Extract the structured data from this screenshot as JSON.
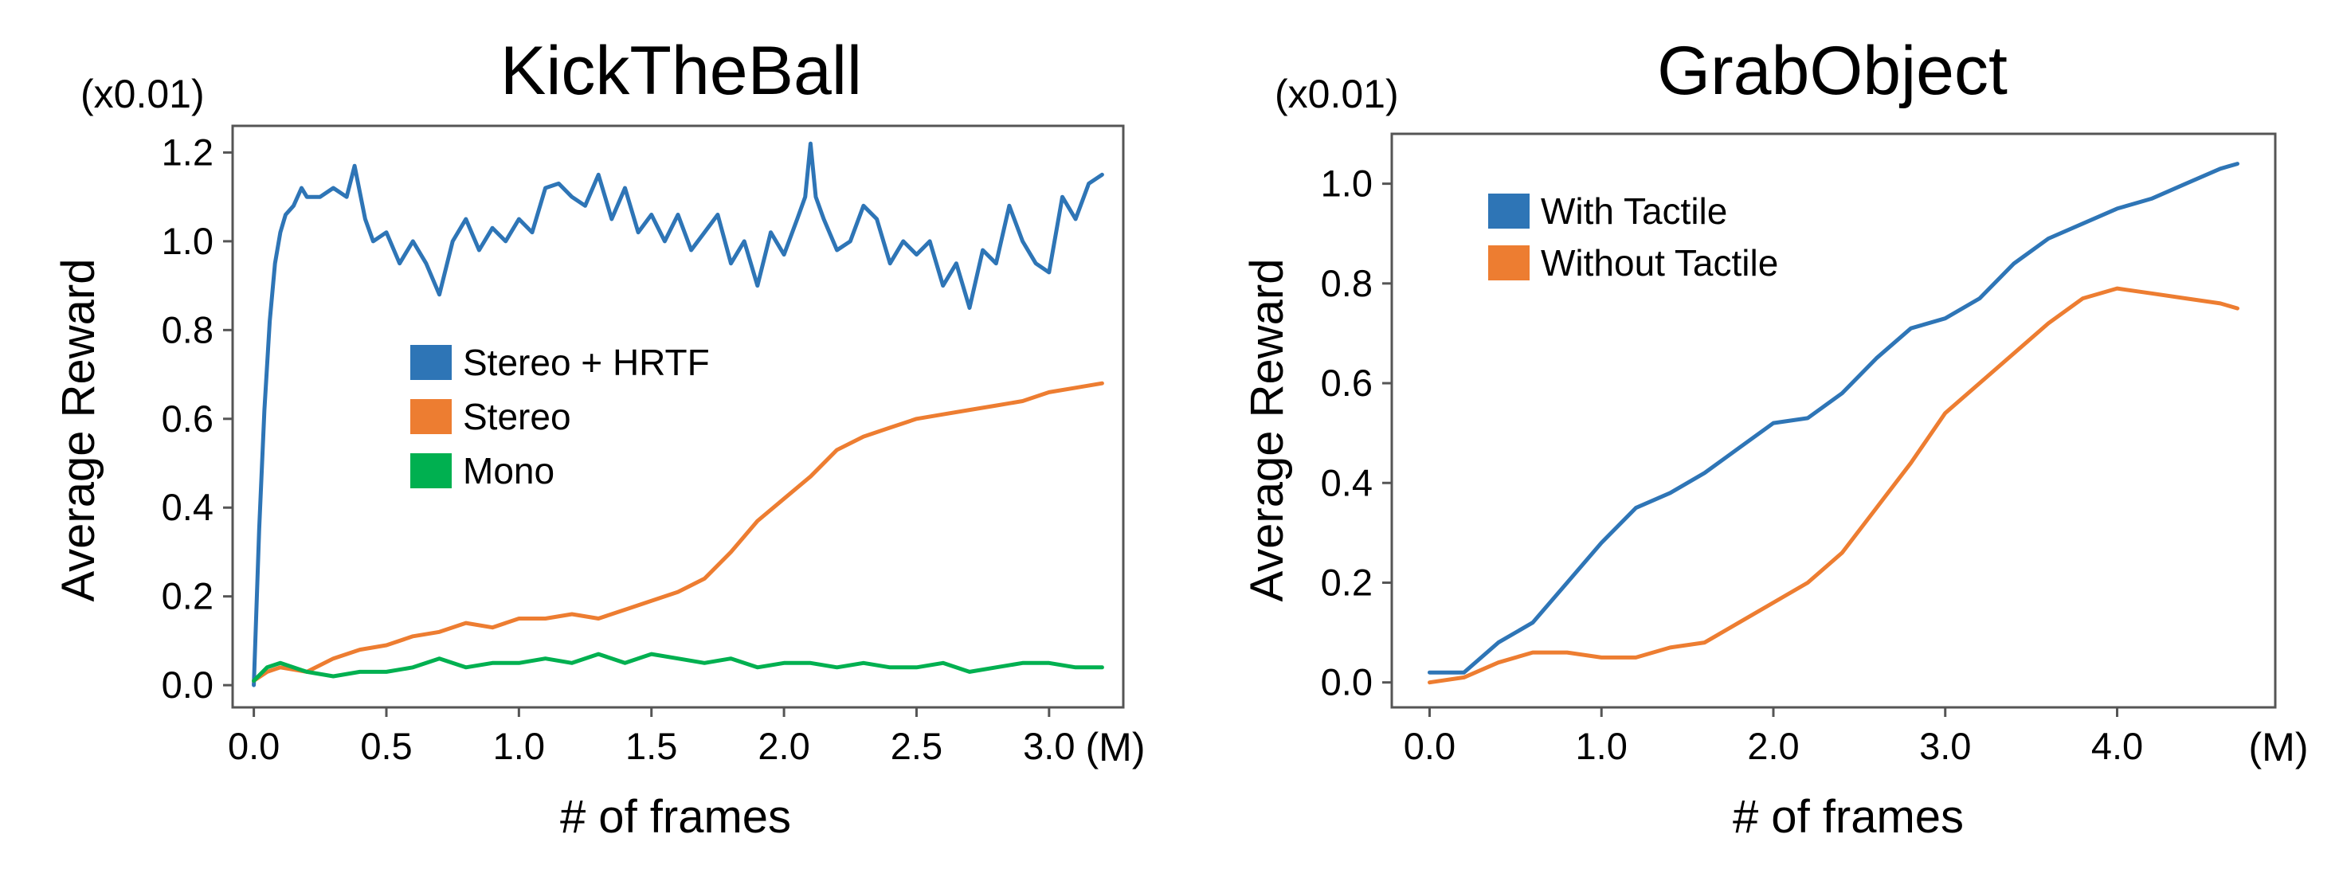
{
  "chart_data": [
    {
      "type": "line",
      "title": "KickTheBall",
      "xlabel": "# of frames",
      "ylabel": "Average Reward",
      "xunit": "(M)",
      "yunit": "(x0.01)",
      "xlim": [
        -0.08,
        3.28
      ],
      "ylim": [
        -0.05,
        1.26
      ],
      "xticks": [
        0.0,
        0.5,
        1.0,
        1.5,
        2.0,
        2.5,
        3.0
      ],
      "xtick_labels": [
        "0.0",
        "0.5",
        "1.0",
        "1.5",
        "2.0",
        "2.5",
        "3.0"
      ],
      "yticks": [
        0.0,
        0.2,
        0.4,
        0.6,
        0.8,
        1.0,
        1.2
      ],
      "ytick_labels": [
        "0.0",
        "0.2",
        "0.4",
        "0.6",
        "0.8",
        "1.0",
        "1.2"
      ],
      "grid": false,
      "legend_position": "center",
      "series": [
        {
          "name": "Stereo + HRTF",
          "color": "#2e75b6",
          "x": [
            0.0,
            0.02,
            0.04,
            0.06,
            0.08,
            0.1,
            0.12,
            0.15,
            0.18,
            0.2,
            0.25,
            0.3,
            0.35,
            0.38,
            0.42,
            0.45,
            0.5,
            0.55,
            0.6,
            0.65,
            0.7,
            0.75,
            0.8,
            0.85,
            0.9,
            0.95,
            1.0,
            1.05,
            1.1,
            1.15,
            1.2,
            1.25,
            1.3,
            1.35,
            1.4,
            1.45,
            1.5,
            1.55,
            1.6,
            1.65,
            1.7,
            1.75,
            1.8,
            1.85,
            1.9,
            1.95,
            2.0,
            2.05,
            2.08,
            2.1,
            2.12,
            2.15,
            2.2,
            2.25,
            2.3,
            2.35,
            2.4,
            2.45,
            2.5,
            2.55,
            2.6,
            2.65,
            2.7,
            2.75,
            2.8,
            2.85,
            2.9,
            2.95,
            3.0,
            3.05,
            3.1,
            3.15,
            3.2
          ],
          "y": [
            0.0,
            0.35,
            0.62,
            0.82,
            0.95,
            1.02,
            1.06,
            1.08,
            1.12,
            1.1,
            1.1,
            1.12,
            1.1,
            1.17,
            1.05,
            1.0,
            1.02,
            0.95,
            1.0,
            0.95,
            0.88,
            1.0,
            1.05,
            0.98,
            1.03,
            1.0,
            1.05,
            1.02,
            1.12,
            1.13,
            1.1,
            1.08,
            1.15,
            1.05,
            1.12,
            1.02,
            1.06,
            1.0,
            1.06,
            0.98,
            1.02,
            1.06,
            0.95,
            1.0,
            0.9,
            1.02,
            0.97,
            1.05,
            1.1,
            1.22,
            1.1,
            1.05,
            0.98,
            1.0,
            1.08,
            1.05,
            0.95,
            1.0,
            0.97,
            1.0,
            0.9,
            0.95,
            0.85,
            0.98,
            0.95,
            1.08,
            1.0,
            0.95,
            0.93,
            1.1,
            1.05,
            1.13,
            1.15
          ]
        },
        {
          "name": "Stereo",
          "color": "#ed7d31",
          "x": [
            0.0,
            0.05,
            0.1,
            0.2,
            0.3,
            0.4,
            0.5,
            0.6,
            0.7,
            0.8,
            0.9,
            1.0,
            1.1,
            1.2,
            1.3,
            1.4,
            1.5,
            1.6,
            1.7,
            1.8,
            1.9,
            2.0,
            2.1,
            2.2,
            2.3,
            2.4,
            2.5,
            2.6,
            2.7,
            2.8,
            2.9,
            3.0,
            3.1,
            3.2
          ],
          "y": [
            0.01,
            0.03,
            0.04,
            0.03,
            0.06,
            0.08,
            0.09,
            0.11,
            0.12,
            0.14,
            0.13,
            0.15,
            0.15,
            0.16,
            0.15,
            0.17,
            0.19,
            0.21,
            0.24,
            0.3,
            0.37,
            0.42,
            0.47,
            0.53,
            0.56,
            0.58,
            0.6,
            0.61,
            0.62,
            0.63,
            0.64,
            0.66,
            0.67,
            0.68
          ]
        },
        {
          "name": "Mono",
          "color": "#00b050",
          "x": [
            0.0,
            0.05,
            0.1,
            0.2,
            0.3,
            0.4,
            0.5,
            0.6,
            0.7,
            0.8,
            0.9,
            1.0,
            1.1,
            1.2,
            1.3,
            1.4,
            1.5,
            1.6,
            1.7,
            1.8,
            1.9,
            2.0,
            2.1,
            2.2,
            2.3,
            2.4,
            2.5,
            2.6,
            2.7,
            2.8,
            2.9,
            3.0,
            3.1,
            3.2
          ],
          "y": [
            0.01,
            0.04,
            0.05,
            0.03,
            0.02,
            0.03,
            0.03,
            0.04,
            0.06,
            0.04,
            0.05,
            0.05,
            0.06,
            0.05,
            0.07,
            0.05,
            0.07,
            0.06,
            0.05,
            0.06,
            0.04,
            0.05,
            0.05,
            0.04,
            0.05,
            0.04,
            0.04,
            0.05,
            0.03,
            0.04,
            0.05,
            0.05,
            0.04,
            0.04
          ]
        }
      ]
    },
    {
      "type": "line",
      "title": "GrabObject",
      "xlabel": "# of frames",
      "ylabel": "Average Reward",
      "xunit": "(M)",
      "yunit": "(x0.01)",
      "xlim": [
        -0.22,
        4.92
      ],
      "ylim": [
        -0.05,
        1.1
      ],
      "xticks": [
        0.0,
        1.0,
        2.0,
        3.0,
        4.0
      ],
      "xtick_labels": [
        "0.0",
        "1.0",
        "2.0",
        "3.0",
        "4.0"
      ],
      "yticks": [
        0.0,
        0.2,
        0.4,
        0.6,
        0.8,
        1.0
      ],
      "ytick_labels": [
        "0.0",
        "0.2",
        "0.4",
        "0.6",
        "0.8",
        "1.0"
      ],
      "grid": false,
      "legend_position": "top-left",
      "series": [
        {
          "name": "With Tactile",
          "color": "#2e75b6",
          "x": [
            0.0,
            0.2,
            0.4,
            0.6,
            0.8,
            1.0,
            1.2,
            1.4,
            1.6,
            1.8,
            2.0,
            2.2,
            2.4,
            2.6,
            2.8,
            3.0,
            3.2,
            3.4,
            3.6,
            3.8,
            4.0,
            4.2,
            4.4,
            4.6,
            4.7
          ],
          "y": [
            0.02,
            0.02,
            0.08,
            0.12,
            0.2,
            0.28,
            0.35,
            0.38,
            0.42,
            0.47,
            0.52,
            0.53,
            0.58,
            0.65,
            0.71,
            0.73,
            0.77,
            0.84,
            0.89,
            0.92,
            0.95,
            0.97,
            1.0,
            1.03,
            1.04
          ]
        },
        {
          "name": "Without Tactile",
          "color": "#ed7d31",
          "x": [
            0.0,
            0.2,
            0.4,
            0.6,
            0.8,
            1.0,
            1.2,
            1.4,
            1.6,
            1.8,
            2.0,
            2.2,
            2.4,
            2.6,
            2.8,
            3.0,
            3.2,
            3.4,
            3.6,
            3.8,
            4.0,
            4.2,
            4.4,
            4.6,
            4.7
          ],
          "y": [
            0.0,
            0.01,
            0.04,
            0.06,
            0.06,
            0.05,
            0.05,
            0.07,
            0.08,
            0.12,
            0.16,
            0.2,
            0.26,
            0.35,
            0.44,
            0.54,
            0.6,
            0.66,
            0.72,
            0.77,
            0.79,
            0.78,
            0.77,
            0.76,
            0.75
          ]
        }
      ]
    }
  ]
}
